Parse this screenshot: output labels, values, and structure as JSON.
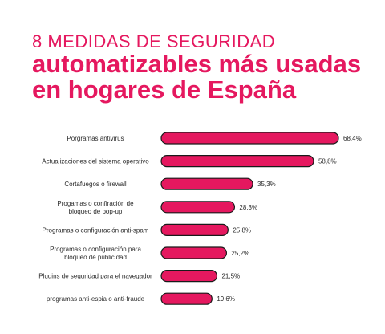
{
  "colors": {
    "accent": "#e5185f",
    "bar_fill": "#e5185f",
    "bar_stroke": "#1a1a1a",
    "text": "#2b2b2b"
  },
  "title": {
    "line1": "8 MEDIDAS DE SEGURIDAD",
    "line2": "automatizables más usadas",
    "line3": "en hogares de España"
  },
  "chart_data": {
    "type": "bar",
    "orientation": "horizontal",
    "title": "8 MEDIDAS DE SEGURIDAD automatizables más usadas en hogares de España",
    "categories": [
      [
        "Porgramas antivirus"
      ],
      [
        "Actualizaciones del sistema operativo"
      ],
      [
        "Cortafuegos o firewall"
      ],
      [
        "Progamas o confiración de",
        "bloqueo de pop-up"
      ],
      [
        "Programas o configuración anti-spam"
      ],
      [
        "Programas o configuración para",
        "bloqueo de publicidad"
      ],
      [
        "Plugins de seguridad para el navegador"
      ],
      [
        "programas anti-espia   o anti-fraude"
      ]
    ],
    "values": [
      68.4,
      58.8,
      35.3,
      28.3,
      25.8,
      25.2,
      21.5,
      19.6
    ],
    "value_labels": [
      "68,4%",
      "58,8%",
      "35,3%",
      "28,3%",
      "25,8%",
      "25,2%",
      "21,5%",
      "19.6%"
    ],
    "xlim": [
      0,
      68.4
    ],
    "grid": false,
    "legend": "none"
  }
}
